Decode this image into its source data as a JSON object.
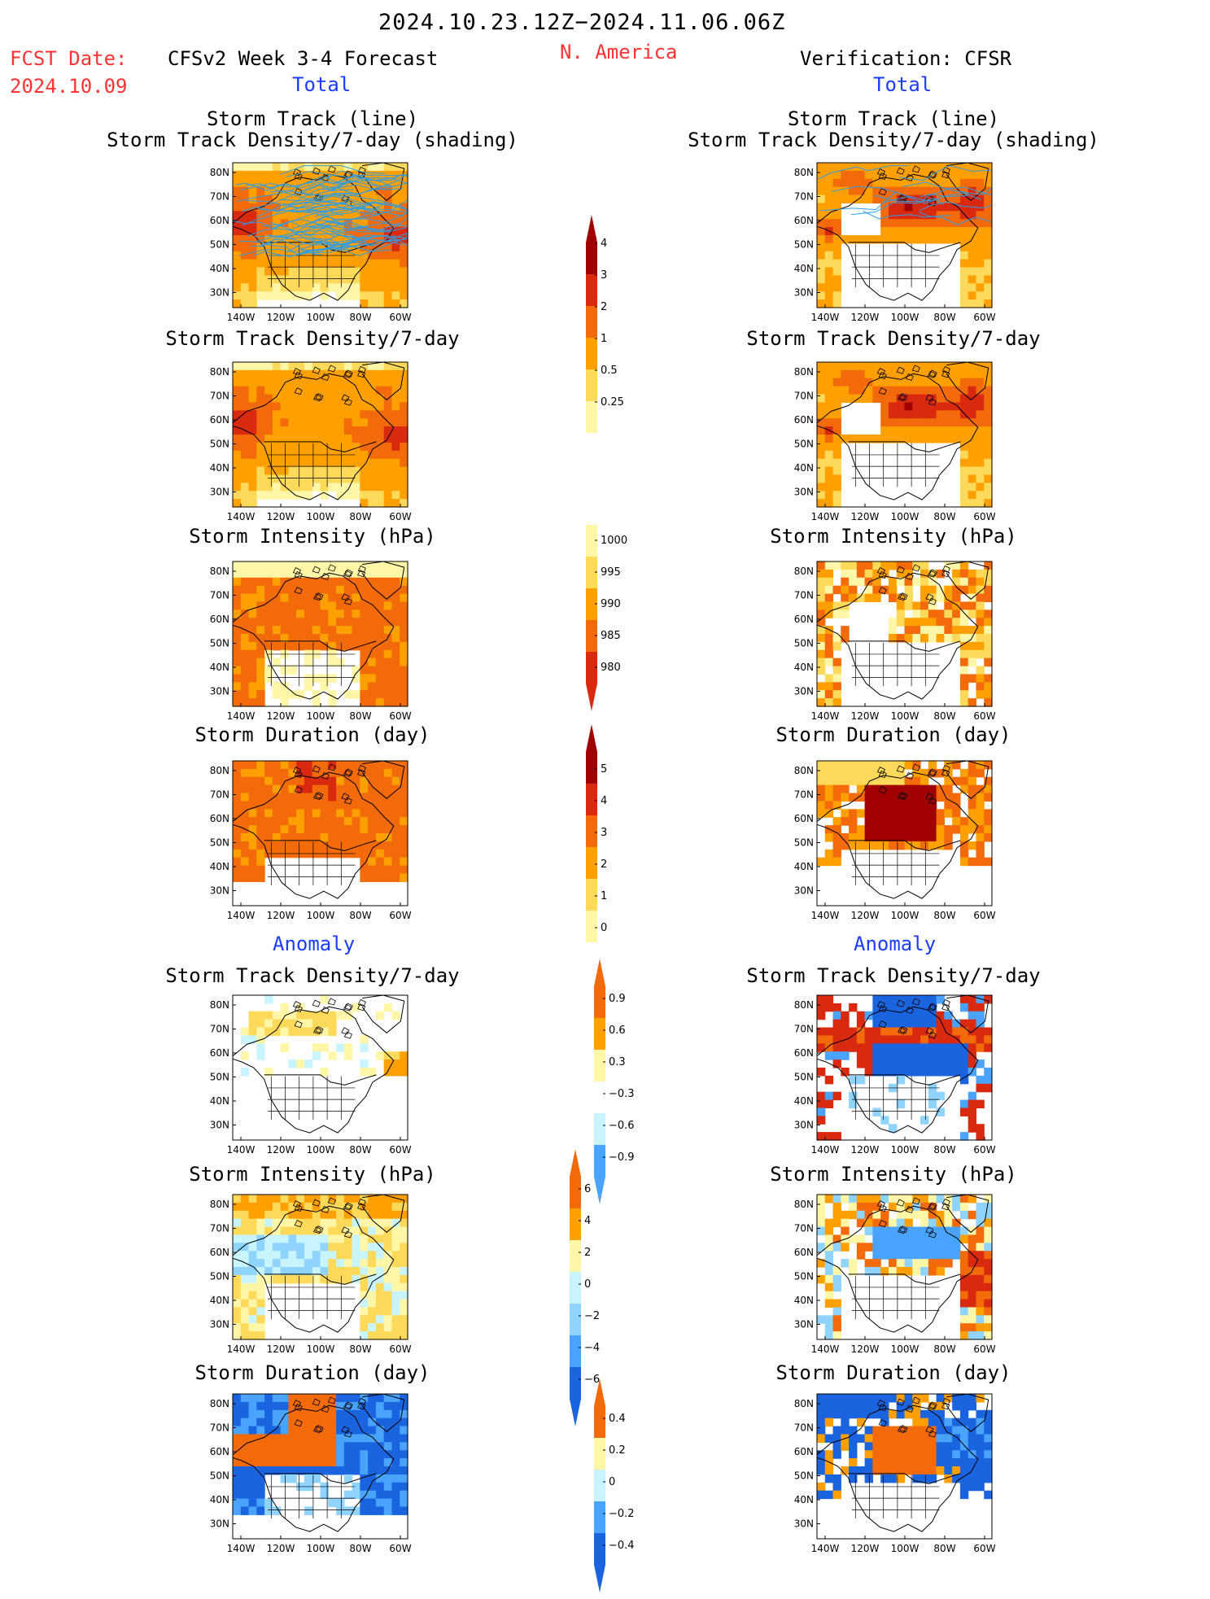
{
  "header": {
    "period": "2024.10.23.12Z−2024.11.06.06Z",
    "fcst_label": "FCST Date:",
    "fcst_date": "2024.10.09",
    "model": "CFSv2 Week 3-4 Forecast",
    "region": "N. America",
    "verification": "Verification: CFSR",
    "left_total": "Total",
    "right_total": "Total",
    "left_anomaly": "Anomaly",
    "right_anomaly": "Anomaly"
  },
  "panels": {
    "track_line": "Storm Track (line)",
    "track_shading": "Storm Track Density/7-day (shading)",
    "density": "Storm Track Density/7-day",
    "intensity": "Storm Intensity (hPa)",
    "duration": "Storm Duration (day)"
  },
  "axes": {
    "lat_ticks": [
      "80N",
      "70N",
      "60N",
      "50N",
      "40N",
      "30N"
    ],
    "lon_ticks": [
      "140W",
      "120W",
      "100W",
      "80W",
      "60W"
    ]
  },
  "colorbars": {
    "density_total": [
      "4",
      "3",
      "2",
      "1",
      "0.5",
      "0.25"
    ],
    "intensity_total": [
      "1000",
      "995",
      "990",
      "985",
      "980"
    ],
    "duration_total": [
      "5",
      "4",
      "3",
      "2",
      "1",
      "0"
    ],
    "density_anom": [
      "0.9",
      "0.6",
      "0.3",
      "−0.3",
      "−0.6",
      "−0.9"
    ],
    "intensity_anom": [
      "6",
      "4",
      "2",
      "0",
      "−2",
      "−4",
      "−6"
    ],
    "duration_anom": [
      "0.4",
      "0.2",
      "0",
      "−0.2",
      "−0.4"
    ]
  },
  "colors": {
    "warm": [
      "#fff6a8",
      "#ffd95a",
      "#ffa000",
      "#f26a0a",
      "#d92a10",
      "#a00000"
    ],
    "cool": [
      "#c8f4ff",
      "#8fd4ff",
      "#4aa3ff",
      "#1a64e0"
    ],
    "track_line": "#2c9ee8"
  },
  "chart_data": {
    "type": "heatmap",
    "fields": [
      "Storm Track Density/7-day",
      "Storm Intensity (hPa)",
      "Storm Duration (day)"
    ],
    "sections": [
      "Total",
      "Anomaly"
    ],
    "columns": [
      "CFSv2 Week 3-4 Forecast",
      "Verification: CFSR"
    ],
    "lat_range": [
      25,
      85
    ],
    "lon_range": [
      -145,
      -50
    ]
  }
}
